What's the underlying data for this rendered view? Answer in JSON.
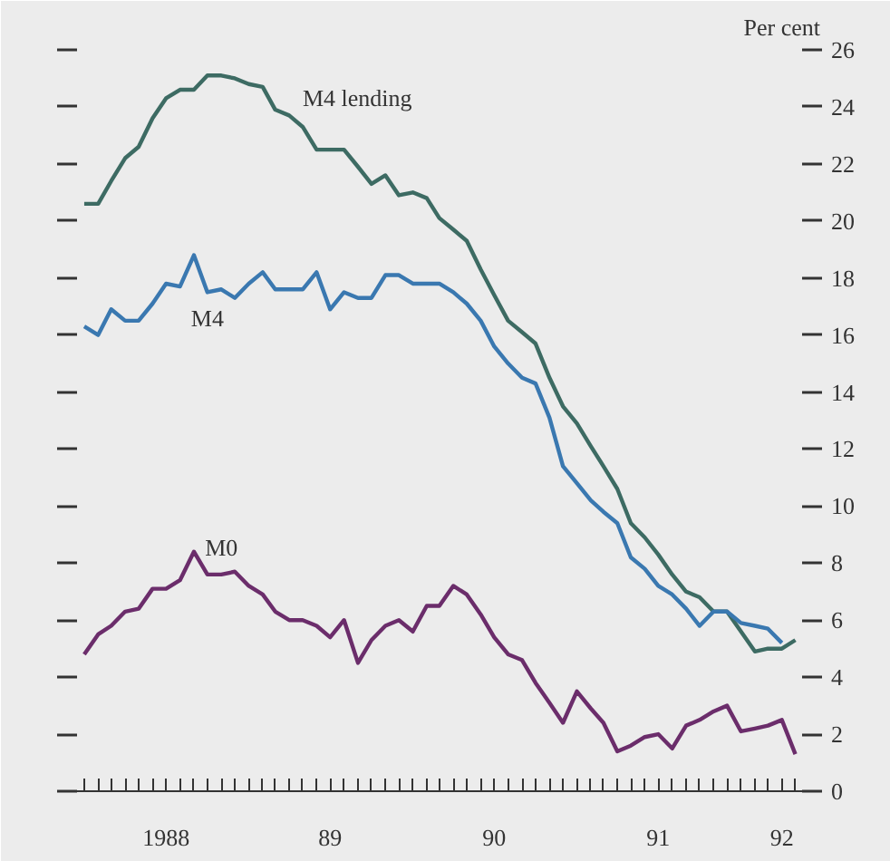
{
  "chart_data": {
    "type": "line",
    "ylabel": "Per cent",
    "ylim": [
      0,
      26
    ],
    "yticks": [
      0,
      2,
      4,
      6,
      8,
      10,
      12,
      14,
      16,
      18,
      20,
      22,
      24,
      26
    ],
    "xlim": [
      "1987-12-16",
      "1992-05-16"
    ],
    "xticks": [
      {
        "value": "1988-01",
        "label": null
      },
      {
        "value": "1988-02",
        "label": null
      },
      {
        "value": "1988-03",
        "label": null
      },
      {
        "value": "1988-04",
        "label": null
      },
      {
        "value": "1988-05",
        "label": null
      },
      {
        "value": "1988-06",
        "label": null
      },
      {
        "value": "1988-07",
        "label": "1988"
      },
      {
        "value": "1988-08",
        "label": null
      },
      {
        "value": "1988-09",
        "label": null
      },
      {
        "value": "1988-10",
        "label": null
      },
      {
        "value": "1988-11",
        "label": null
      },
      {
        "value": "1988-12",
        "label": null
      },
      {
        "value": "1989-01",
        "label": null
      },
      {
        "value": "1989-02",
        "label": null
      },
      {
        "value": "1989-03",
        "label": null
      },
      {
        "value": "1989-04",
        "label": null
      },
      {
        "value": "1989-05",
        "label": null
      },
      {
        "value": "1989-06",
        "label": null
      },
      {
        "value": "1989-07",
        "label": "89"
      },
      {
        "value": "1989-08",
        "label": null
      },
      {
        "value": "1989-09",
        "label": null
      },
      {
        "value": "1989-10",
        "label": null
      },
      {
        "value": "1989-11",
        "label": null
      },
      {
        "value": "1989-12",
        "label": null
      },
      {
        "value": "1990-01",
        "label": null
      },
      {
        "value": "1990-02",
        "label": null
      },
      {
        "value": "1990-03",
        "label": null
      },
      {
        "value": "1990-04",
        "label": null
      },
      {
        "value": "1990-05",
        "label": null
      },
      {
        "value": "1990-06",
        "label": null
      },
      {
        "value": "1990-07",
        "label": "90"
      },
      {
        "value": "1990-08",
        "label": null
      },
      {
        "value": "1990-09",
        "label": null
      },
      {
        "value": "1990-10",
        "label": null
      },
      {
        "value": "1990-11",
        "label": null
      },
      {
        "value": "1990-12",
        "label": null
      },
      {
        "value": "1991-01",
        "label": null
      },
      {
        "value": "1991-02",
        "label": null
      },
      {
        "value": "1991-03",
        "label": null
      },
      {
        "value": "1991-04",
        "label": null
      },
      {
        "value": "1991-05",
        "label": null
      },
      {
        "value": "1991-06",
        "label": null
      },
      {
        "value": "1991-07",
        "label": "91"
      },
      {
        "value": "1991-08",
        "label": null
      },
      {
        "value": "1991-09",
        "label": null
      },
      {
        "value": "1991-10",
        "label": null
      },
      {
        "value": "1991-11",
        "label": null
      },
      {
        "value": "1991-12",
        "label": null
      },
      {
        "value": "1992-01",
        "label": null
      },
      {
        "value": "1992-02",
        "label": null
      },
      {
        "value": "1992-03",
        "label": null
      },
      {
        "value": "1992-04",
        "label": "92"
      },
      {
        "value": "1992-05",
        "label": null
      }
    ],
    "x": [
      "1988-01",
      "1988-02",
      "1988-03",
      "1988-04",
      "1988-05",
      "1988-06",
      "1988-07",
      "1988-08",
      "1988-09",
      "1988-10",
      "1988-11",
      "1988-12",
      "1989-01",
      "1989-02",
      "1989-03",
      "1989-04",
      "1989-05",
      "1989-06",
      "1989-07",
      "1989-08",
      "1989-09",
      "1989-10",
      "1989-11",
      "1989-12",
      "1990-01",
      "1990-02",
      "1990-03",
      "1990-04",
      "1990-05",
      "1990-06",
      "1990-07",
      "1990-08",
      "1990-09",
      "1990-10",
      "1990-11",
      "1990-12",
      "1991-01",
      "1991-02",
      "1991-03",
      "1991-04",
      "1991-05",
      "1991-06",
      "1991-07",
      "1991-08",
      "1991-09",
      "1991-10",
      "1991-11",
      "1991-12",
      "1992-01",
      "1992-02",
      "1992-03",
      "1992-04",
      "1992-05"
    ],
    "series": [
      {
        "name": "M4 lending",
        "color": "#3d6b63",
        "values": [
          20.6,
          20.6,
          21.4,
          22.2,
          22.6,
          23.6,
          24.3,
          24.6,
          24.6,
          25.1,
          25.1,
          25.0,
          24.8,
          24.7,
          23.9,
          23.7,
          23.3,
          22.5,
          22.5,
          22.5,
          21.9,
          21.3,
          21.6,
          20.9,
          21.0,
          20.8,
          20.1,
          19.7,
          19.3,
          18.3,
          17.4,
          16.5,
          16.1,
          15.7,
          14.5,
          13.5,
          12.9,
          12.1,
          11.4,
          10.6,
          9.4,
          8.9,
          8.3,
          7.6,
          7.0,
          6.8,
          6.3,
          6.3,
          5.6,
          4.9,
          5.0,
          5.0,
          5.3
        ]
      },
      {
        "name": "M4",
        "color": "#3a78b0",
        "values": [
          16.3,
          16.0,
          16.9,
          16.5,
          16.5,
          17.1,
          17.8,
          17.7,
          18.8,
          17.5,
          17.6,
          17.3,
          17.8,
          18.2,
          17.6,
          17.6,
          17.6,
          18.2,
          16.9,
          17.5,
          17.3,
          17.3,
          18.1,
          18.1,
          17.8,
          17.8,
          17.8,
          17.5,
          17.1,
          16.5,
          15.6,
          15.0,
          14.5,
          14.3,
          13.1,
          11.4,
          10.8,
          10.2,
          9.8,
          9.4,
          8.2,
          7.8,
          7.2,
          6.9,
          6.4,
          5.8,
          6.3,
          6.3,
          5.9,
          5.8,
          5.7,
          5.2,
          null
        ]
      },
      {
        "name": "M0",
        "color": "#6b2d6b",
        "values": [
          4.8,
          5.5,
          5.8,
          6.3,
          6.4,
          7.1,
          7.1,
          7.4,
          8.4,
          7.6,
          7.6,
          7.7,
          7.2,
          6.9,
          6.3,
          6.0,
          6.0,
          5.8,
          5.4,
          6.0,
          4.5,
          5.3,
          5.8,
          6.0,
          5.6,
          6.5,
          6.5,
          7.2,
          6.9,
          6.2,
          5.4,
          4.8,
          4.6,
          3.8,
          3.1,
          2.4,
          3.5,
          2.9,
          2.4,
          1.4,
          1.6,
          1.9,
          2.0,
          1.5,
          2.3,
          2.5,
          2.8,
          3.0,
          2.1,
          2.2,
          2.3,
          2.5,
          1.3
        ]
      }
    ]
  }
}
